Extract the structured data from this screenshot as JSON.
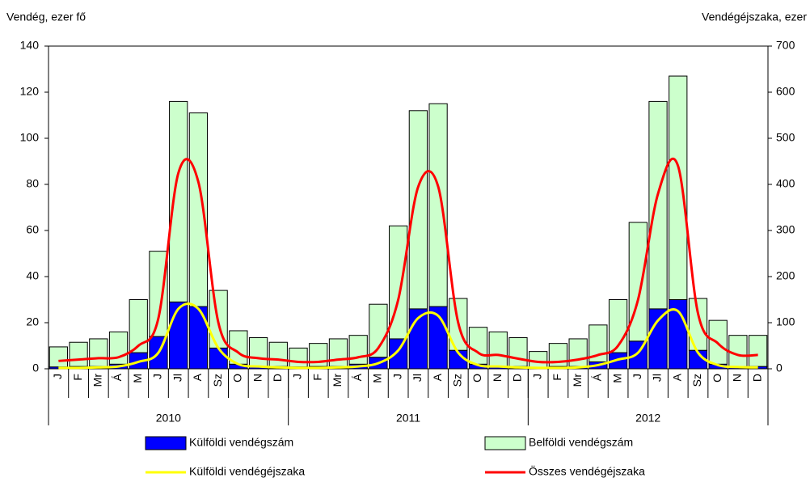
{
  "chart_data": {
    "type": "bar",
    "y_label": "Vendég, ezer fő",
    "y2_label": "Vendégéjszaka, ezer",
    "categories": [
      "J",
      "F",
      "Mr",
      "Á",
      "M",
      "J",
      "Jl",
      "A",
      "Sz",
      "O",
      "N",
      "D",
      "J",
      "F",
      "Mr",
      "Á",
      "M",
      "J",
      "Jl",
      "A",
      "Sz",
      "O",
      "N",
      "D",
      "J",
      "F",
      "Mr",
      "Á",
      "M",
      "J",
      "Jl",
      "A",
      "Sz",
      "O",
      "N",
      "D"
    ],
    "groups": [
      "2010",
      "2011",
      "2012"
    ],
    "series": [
      {
        "name": "Külföldi vendégszám",
        "type": "bar",
        "color": "#0000ff",
        "values": [
          0.8,
          1,
          1,
          2,
          7,
          14,
          29,
          27,
          9,
          2,
          1,
          1,
          0.8,
          1,
          1,
          2,
          5,
          13,
          26,
          27,
          8,
          2,
          1,
          1,
          0.5,
          1,
          1,
          3,
          7,
          12,
          26,
          30,
          8,
          2,
          1,
          1
        ]
      },
      {
        "name": "Belföldi vendégszám",
        "type": "bar",
        "color": "#ccffcc",
        "values": [
          8.7,
          10.5,
          12,
          14,
          23,
          37,
          87,
          84,
          25,
          14.5,
          12.5,
          10.5,
          8.2,
          10,
          12,
          12.5,
          23,
          49,
          86,
          88,
          22.5,
          16,
          15,
          12.5,
          7,
          10,
          12,
          16,
          23,
          51.5,
          90,
          97,
          22.5,
          19,
          13.5,
          13.5
        ]
      },
      {
        "name": "Külföldi vendégéjszaka",
        "type": "line",
        "axis": "y2",
        "color": "#ffff00",
        "values": [
          2,
          2,
          3,
          5,
          15,
          35,
          130,
          130,
          45,
          10,
          5,
          3,
          2,
          2,
          3,
          5,
          12,
          40,
          110,
          115,
          35,
          8,
          5,
          3,
          2,
          2,
          3,
          8,
          20,
          35,
          105,
          125,
          35,
          8,
          4,
          3
        ]
      },
      {
        "name": "Összes vendégéjszaka",
        "type": "line",
        "axis": "y2",
        "color": "#ff0000",
        "values": [
          17,
          20,
          23,
          25,
          50,
          110,
          425,
          405,
          100,
          35,
          23,
          20,
          15,
          15,
          20,
          25,
          45,
          150,
          395,
          395,
          100,
          35,
          30,
          22,
          15,
          15,
          20,
          30,
          50,
          150,
          380,
          440,
          120,
          55,
          30,
          30
        ]
      }
    ],
    "ylim": [
      0,
      140
    ],
    "yticks": [
      0,
      20,
      40,
      60,
      80,
      100,
      120,
      140
    ],
    "y2lim": [
      0,
      700
    ],
    "y2ticks": [
      0,
      100,
      200,
      300,
      400,
      500,
      600,
      700
    ],
    "grid": false
  }
}
